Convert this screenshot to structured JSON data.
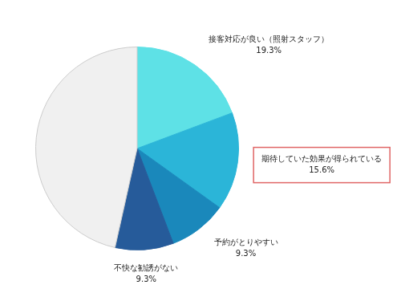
{
  "chart_data": {
    "type": "pie",
    "categories": [
      "接客対応が良い（照射スタッフ）",
      "期待していた効果が得られている",
      "予約がとりやすい",
      "不快な勧誘がない",
      null
    ],
    "values": [
      19.3,
      15.6,
      9.3,
      9.3,
      46.5
    ],
    "value_labels": [
      "19.3%",
      "15.6%",
      "9.3%",
      "9.3%",
      null
    ],
    "colors": [
      "#5ee1e6",
      "#2bb5d8",
      "#1a88bb",
      "#265b9a",
      "#f0f0f0"
    ],
    "data_labels": true
  }
}
